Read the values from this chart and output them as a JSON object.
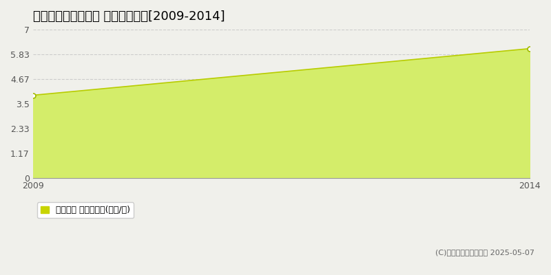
{
  "title": "賀茂郡南伊豆町二條 土地価格推移[2009-2014]",
  "x_values": [
    2009,
    2014
  ],
  "y_values": [
    3.9,
    6.1
  ],
  "y_ticks": [
    0,
    1.17,
    2.33,
    3.5,
    4.67,
    5.83,
    7
  ],
  "y_tick_labels": [
    "0",
    "1.17",
    "2.33",
    "3.5",
    "4.67",
    "5.83",
    "7"
  ],
  "x_ticks": [
    2009,
    2014
  ],
  "ylim": [
    0,
    7
  ],
  "xlim": [
    2009,
    2014
  ],
  "line_color": "#b8cc00",
  "fill_color": "#d4ed6a",
  "fill_alpha": 1.0,
  "marker_color": "#ffffff",
  "marker_edge_color": "#a0b800",
  "marker_size": 5,
  "grid_color": "#cccccc",
  "grid_linestyle": "--",
  "grid_alpha": 1.0,
  "background_color": "#f0f0eb",
  "plot_bg_color": "#f0f0eb",
  "legend_label": "土地価格 平均坪単価(万円/坪)",
  "legend_marker_color": "#c8d400",
  "copyright_text": "(C)土地価格ドットコム 2025-05-07",
  "title_fontsize": 13,
  "tick_fontsize": 9,
  "legend_fontsize": 9,
  "copyright_fontsize": 8
}
